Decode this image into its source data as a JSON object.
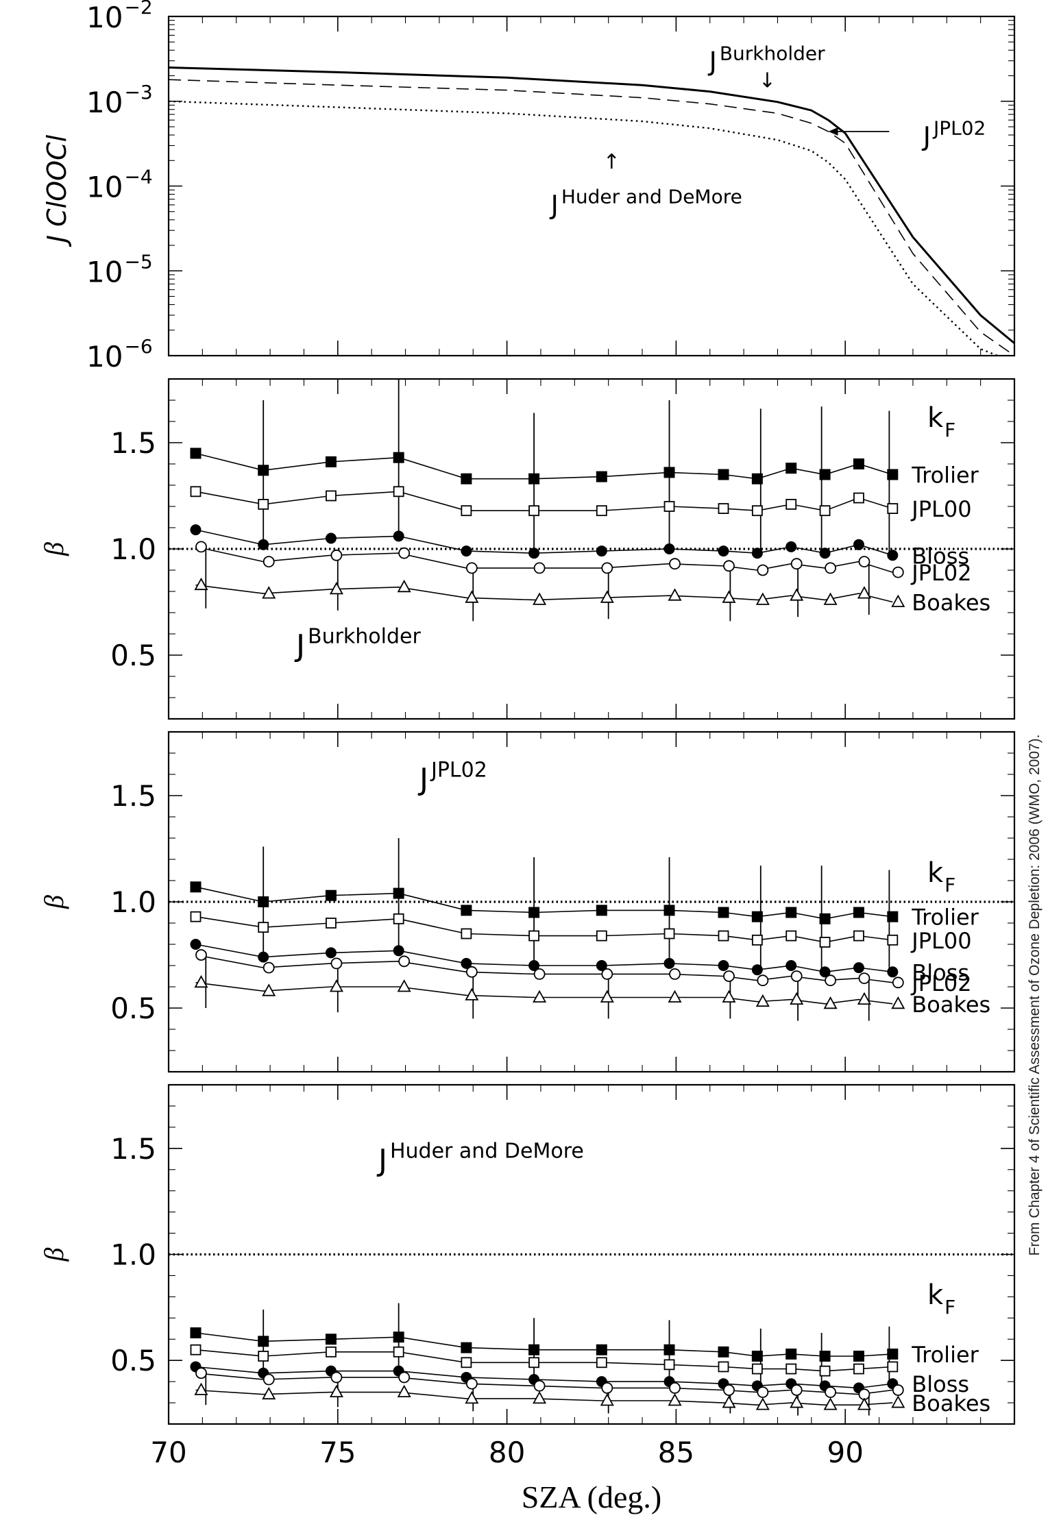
{
  "figure": {
    "credit": "From Chapter 4 of Scientific Assessment of Ozone Depletion: 2006 (WMO, 2007).",
    "xlabel": "SZA (deg.)",
    "x_ticks": [
      70,
      75,
      80,
      85,
      90
    ]
  },
  "chart_data": [
    {
      "type": "line",
      "panel": "top",
      "ylabel": "J ClOOCl",
      "yscale": "log",
      "ylim": [
        1e-06,
        0.01
      ],
      "xlim": [
        70,
        95
      ],
      "y_tick_labels": [
        {
          "base": "10",
          "exp": "−2",
          "value": 0.01
        },
        {
          "base": "10",
          "exp": "−3",
          "value": 0.001
        },
        {
          "base": "10",
          "exp": "−4",
          "value": 0.0001
        },
        {
          "base": "10",
          "exp": "−5",
          "value": 1e-05
        },
        {
          "base": "10",
          "exp": "−6",
          "value": 1e-06
        }
      ],
      "series": [
        {
          "id": "burkholder",
          "style": "solid",
          "x": [
            70,
            75,
            80,
            84,
            86,
            88,
            89,
            89.5,
            90,
            92,
            94,
            95
          ],
          "y": [
            0.0025,
            0.0022,
            0.0019,
            0.00155,
            0.0013,
            0.00098,
            0.00078,
            0.0006,
            0.00042,
            2.5e-05,
            3e-06,
            1.4e-06
          ]
        },
        {
          "id": "jpl02",
          "style": "dashed",
          "x": [
            70,
            75,
            80,
            84,
            86,
            88,
            89,
            89.5,
            90,
            92,
            94,
            95
          ],
          "y": [
            0.0018,
            0.00155,
            0.00135,
            0.0011,
            0.00093,
            0.00072,
            0.00055,
            0.00044,
            0.00032,
            1.6e-05,
            1.9e-06,
            1e-06
          ]
        },
        {
          "id": "huder",
          "style": "dotted",
          "x": [
            70,
            75,
            80,
            84,
            86,
            88,
            89,
            89.5,
            90,
            92,
            94,
            94.5
          ],
          "y": [
            0.001,
            0.00085,
            0.00072,
            0.00058,
            0.00048,
            0.00035,
            0.00026,
            0.00019,
            0.00012,
            7e-06,
            1.2e-06,
            1e-06
          ]
        }
      ],
      "annotations": [
        {
          "base": "J",
          "sup": "Burkholder",
          "x": 87.8,
          "y": 0.0032,
          "arrow": "↓",
          "ax": 87.6,
          "ay": 0.0014
        },
        {
          "base": "J",
          "sup": "JPL02",
          "x": 92.3,
          "y": 0.00042,
          "arrow_from": [
            91.3,
            0.00044
          ],
          "arrow_to": [
            89.5,
            0.00044
          ]
        },
        {
          "base": "J",
          "sup": "Huder and DeMore",
          "x": 81.5,
          "y": 6.5e-05,
          "arrow": "↑",
          "ax": 83.0,
          "ay": 0.00026
        }
      ]
    },
    {
      "type": "line",
      "panel": "burkholder",
      "ylabel": "β",
      "ylim": [
        0.2,
        1.8
      ],
      "xlim": [
        70,
        95
      ],
      "y_ticks": [
        "0.5",
        "1.0",
        "1.5"
      ],
      "reference_line": 1.0,
      "title": {
        "base": "J",
        "sup": "Burkholder"
      },
      "legend_title": {
        "base": "k",
        "sub": "F"
      },
      "x": [
        70.8,
        72.8,
        74.8,
        76.8,
        78.8,
        80.8,
        82.8,
        84.8,
        86.4,
        87.4,
        88.4,
        89.4,
        90.4,
        91.4
      ],
      "series": [
        {
          "name": "Trolier",
          "marker": "filled-square",
          "values": [
            1.45,
            1.37,
            1.41,
            1.43,
            1.33,
            1.33,
            1.34,
            1.36,
            1.35,
            1.33,
            1.38,
            1.35,
            1.4,
            1.35
          ]
        },
        {
          "name": "JPL00",
          "marker": "open-square",
          "values": [
            1.27,
            1.21,
            1.25,
            1.27,
            1.18,
            1.18,
            1.18,
            1.2,
            1.19,
            1.18,
            1.21,
            1.18,
            1.24,
            1.19
          ]
        },
        {
          "name": "Bloss",
          "marker": "filled-circle",
          "values": [
            1.09,
            1.02,
            1.05,
            1.06,
            0.99,
            0.98,
            0.99,
            1.0,
            0.99,
            0.98,
            1.01,
            0.98,
            1.02,
            0.97
          ]
        },
        {
          "name": "JPL02",
          "marker": "open-circle",
          "values": [
            1.01,
            0.94,
            0.97,
            0.98,
            0.91,
            0.91,
            0.91,
            0.93,
            0.92,
            0.9,
            0.93,
            0.91,
            0.94,
            0.89
          ]
        },
        {
          "name": "Boakes",
          "marker": "open-triangle",
          "values": [
            0.83,
            0.79,
            0.81,
            0.82,
            0.77,
            0.76,
            0.77,
            0.78,
            0.77,
            0.76,
            0.78,
            0.76,
            0.79,
            0.75
          ]
        }
      ],
      "error_bars": [
        {
          "x": 71.1,
          "lo": 0.72,
          "hi": 1.02
        },
        {
          "x": 72.8,
          "lo": 1.02,
          "hi": 1.7
        },
        {
          "x": 75.0,
          "lo": 0.71,
          "hi": 0.99
        },
        {
          "x": 76.8,
          "lo": 1.06,
          "hi": 1.8
        },
        {
          "x": 79.0,
          "lo": 0.66,
          "hi": 0.92
        },
        {
          "x": 80.8,
          "lo": 0.98,
          "hi": 1.64
        },
        {
          "x": 83.0,
          "lo": 0.67,
          "hi": 0.92
        },
        {
          "x": 84.8,
          "lo": 1.0,
          "hi": 1.7
        },
        {
          "x": 86.6,
          "lo": 0.66,
          "hi": 0.92
        },
        {
          "x": 87.5,
          "lo": 0.98,
          "hi": 1.66
        },
        {
          "x": 88.6,
          "lo": 0.68,
          "hi": 0.94
        },
        {
          "x": 89.3,
          "lo": 0.98,
          "hi": 1.67
        },
        {
          "x": 90.7,
          "lo": 0.69,
          "hi": 0.95
        },
        {
          "x": 91.3,
          "lo": 0.97,
          "hi": 1.65
        }
      ]
    },
    {
      "type": "line",
      "panel": "jpl02",
      "ylabel": "β",
      "ylim": [
        0.2,
        1.8
      ],
      "xlim": [
        70,
        95
      ],
      "y_ticks": [
        "0.5",
        "1.0",
        "1.5"
      ],
      "reference_line": 1.0,
      "title": {
        "base": "J",
        "sup": "JPL02"
      },
      "legend_title": {
        "base": "k",
        "sub": "F"
      },
      "x": [
        70.8,
        72.8,
        74.8,
        76.8,
        78.8,
        80.8,
        82.8,
        84.8,
        86.4,
        87.4,
        88.4,
        89.4,
        90.4,
        91.4
      ],
      "series": [
        {
          "name": "Trolier",
          "marker": "filled-square",
          "values": [
            1.07,
            1.0,
            1.03,
            1.04,
            0.96,
            0.95,
            0.96,
            0.96,
            0.95,
            0.93,
            0.95,
            0.92,
            0.95,
            0.93
          ]
        },
        {
          "name": "JPL00",
          "marker": "open-square",
          "values": [
            0.93,
            0.88,
            0.9,
            0.92,
            0.85,
            0.84,
            0.84,
            0.85,
            0.84,
            0.82,
            0.84,
            0.81,
            0.84,
            0.82
          ]
        },
        {
          "name": "Bloss",
          "marker": "filled-circle",
          "values": [
            0.8,
            0.74,
            0.76,
            0.77,
            0.71,
            0.7,
            0.7,
            0.71,
            0.7,
            0.68,
            0.7,
            0.67,
            0.69,
            0.67
          ]
        },
        {
          "name": "JPL02",
          "marker": "open-circle",
          "values": [
            0.75,
            0.69,
            0.71,
            0.72,
            0.67,
            0.66,
            0.66,
            0.66,
            0.65,
            0.63,
            0.65,
            0.63,
            0.64,
            0.62
          ]
        },
        {
          "name": "Boakes",
          "marker": "open-triangle",
          "values": [
            0.62,
            0.58,
            0.6,
            0.6,
            0.56,
            0.55,
            0.55,
            0.55,
            0.55,
            0.53,
            0.54,
            0.52,
            0.54,
            0.52
          ]
        }
      ],
      "error_bars": [
        {
          "x": 71.1,
          "lo": 0.5,
          "hi": 0.75
        },
        {
          "x": 72.8,
          "lo": 0.75,
          "hi": 1.26
        },
        {
          "x": 75.0,
          "lo": 0.48,
          "hi": 0.71
        },
        {
          "x": 76.8,
          "lo": 0.77,
          "hi": 1.3
        },
        {
          "x": 79.0,
          "lo": 0.45,
          "hi": 0.67
        },
        {
          "x": 80.8,
          "lo": 0.7,
          "hi": 1.21
        },
        {
          "x": 83.0,
          "lo": 0.45,
          "hi": 0.66
        },
        {
          "x": 84.8,
          "lo": 0.71,
          "hi": 1.21
        },
        {
          "x": 86.6,
          "lo": 0.45,
          "hi": 0.65
        },
        {
          "x": 87.5,
          "lo": 0.68,
          "hi": 1.17
        },
        {
          "x": 88.6,
          "lo": 0.44,
          "hi": 0.65
        },
        {
          "x": 89.3,
          "lo": 0.67,
          "hi": 1.17
        },
        {
          "x": 90.7,
          "lo": 0.44,
          "hi": 0.64
        },
        {
          "x": 91.3,
          "lo": 0.67,
          "hi": 1.15
        }
      ]
    },
    {
      "type": "line",
      "panel": "huder",
      "ylabel": "β",
      "ylim": [
        0.2,
        1.8
      ],
      "xlim": [
        70,
        95
      ],
      "y_ticks": [
        "0.5",
        "1.0",
        "1.5"
      ],
      "reference_line": 1.0,
      "title": {
        "base": "J",
        "sup": "Huder and DeMore"
      },
      "legend_title": {
        "base": "k",
        "sub": "F"
      },
      "x": [
        70.8,
        72.8,
        74.8,
        76.8,
        78.8,
        80.8,
        82.8,
        84.8,
        86.4,
        87.4,
        88.4,
        89.4,
        90.4,
        91.4
      ],
      "series": [
        {
          "name": "Trolier",
          "marker": "filled-square",
          "values": [
            0.63,
            0.59,
            0.6,
            0.61,
            0.56,
            0.55,
            0.55,
            0.55,
            0.54,
            0.52,
            0.53,
            0.52,
            0.52,
            0.53
          ]
        },
        {
          "name": "",
          "marker": "open-square",
          "values": [
            0.55,
            0.52,
            0.54,
            0.54,
            0.49,
            0.49,
            0.49,
            0.48,
            0.47,
            0.46,
            0.46,
            0.45,
            0.46,
            0.47
          ]
        },
        {
          "name": "Bloss",
          "marker": "filled-circle",
          "values": [
            0.47,
            0.44,
            0.45,
            0.45,
            0.42,
            0.41,
            0.4,
            0.4,
            0.39,
            0.38,
            0.39,
            0.38,
            0.37,
            0.39
          ]
        },
        {
          "name": "",
          "marker": "open-circle",
          "values": [
            0.44,
            0.41,
            0.42,
            0.42,
            0.39,
            0.38,
            0.37,
            0.37,
            0.36,
            0.35,
            0.36,
            0.35,
            0.34,
            0.36
          ]
        },
        {
          "name": "Boakes",
          "marker": "open-triangle",
          "values": [
            0.36,
            0.34,
            0.35,
            0.35,
            0.32,
            0.32,
            0.31,
            0.31,
            0.3,
            0.29,
            0.3,
            0.29,
            0.29,
            0.3
          ]
        }
      ],
      "error_bars": [
        {
          "x": 71.1,
          "lo": 0.29,
          "hi": 0.43
        },
        {
          "x": 72.8,
          "lo": 0.44,
          "hi": 0.74
        },
        {
          "x": 75.0,
          "lo": 0.28,
          "hi": 0.42
        },
        {
          "x": 76.8,
          "lo": 0.45,
          "hi": 0.77
        },
        {
          "x": 79.0,
          "lo": 0.26,
          "hi": 0.39
        },
        {
          "x": 80.8,
          "lo": 0.41,
          "hi": 0.7
        },
        {
          "x": 83.0,
          "lo": 0.25,
          "hi": 0.38
        },
        {
          "x": 84.8,
          "lo": 0.41,
          "hi": 0.69
        },
        {
          "x": 86.6,
          "lo": 0.25,
          "hi": 0.37
        },
        {
          "x": 87.5,
          "lo": 0.38,
          "hi": 0.65
        },
        {
          "x": 88.6,
          "lo": 0.24,
          "hi": 0.36
        },
        {
          "x": 89.3,
          "lo": 0.38,
          "hi": 0.63
        },
        {
          "x": 90.7,
          "lo": 0.24,
          "hi": 0.35
        },
        {
          "x": 91.3,
          "lo": 0.39,
          "hi": 0.66
        }
      ]
    }
  ]
}
